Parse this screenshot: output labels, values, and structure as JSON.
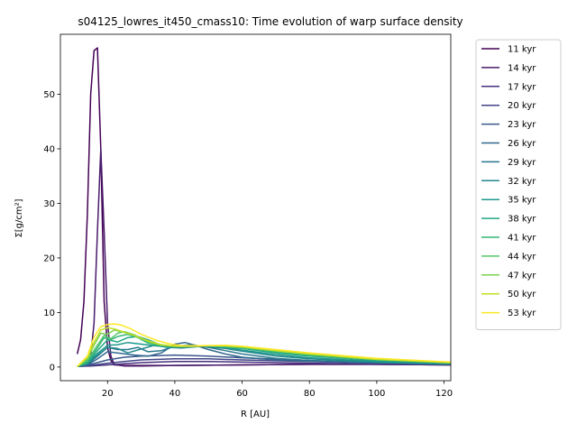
{
  "chart_data": {
    "type": "line",
    "title": "s04125_lowres_it450_cmass10: Time evolution of warp surface density",
    "xlabel": "R [AU]",
    "ylabel": "Σ[g/cm²]",
    "xlim": [
      6,
      122
    ],
    "ylim": [
      -2.5,
      61
    ],
    "x_ticks": [
      20,
      40,
      60,
      80,
      100,
      120
    ],
    "y_ticks": [
      0,
      10,
      20,
      30,
      40,
      50
    ],
    "grid": false,
    "legend_position": "outside-right",
    "series": [
      {
        "name": "11 kyr",
        "color": "#440154",
        "x": [
          11,
          12,
          13,
          14,
          15,
          16,
          17,
          18,
          19,
          20,
          21,
          22,
          25,
          30,
          40,
          60,
          80,
          100,
          122
        ],
        "values": [
          2.4,
          5,
          12,
          28,
          50,
          58,
          58.5,
          40,
          12,
          3.5,
          1.2,
          0.4,
          0.3,
          0.3,
          0.3,
          0.4,
          0.5,
          0.5,
          0.4
        ]
      },
      {
        "name": "14 kyr",
        "color": "#481a6c",
        "x": [
          11,
          13,
          15,
          16,
          17,
          18,
          19,
          20,
          21,
          22,
          25,
          30,
          40,
          60,
          80,
          100,
          122
        ],
        "values": [
          0.2,
          0.5,
          2,
          8,
          25,
          40,
          25,
          8,
          2,
          0.5,
          0.2,
          0.2,
          0.3,
          0.4,
          0.5,
          0.5,
          0.4
        ]
      },
      {
        "name": "17 kyr",
        "color": "#472f7d",
        "x": [
          11,
          15,
          20,
          25,
          30,
          40,
          50,
          60,
          80,
          100,
          122
        ],
        "values": [
          0.1,
          0.2,
          0.4,
          0.6,
          0.8,
          1.0,
          1.0,
          0.9,
          0.7,
          0.5,
          0.4
        ]
      },
      {
        "name": "20 kyr",
        "color": "#414487",
        "x": [
          11,
          15,
          20,
          25,
          30,
          40,
          50,
          60,
          80,
          100,
          122
        ],
        "values": [
          0.1,
          0.3,
          0.7,
          1.0,
          1.3,
          1.5,
          1.5,
          1.3,
          1.0,
          0.7,
          0.5
        ]
      },
      {
        "name": "23 kyr",
        "color": "#39568c",
        "x": [
          11,
          15,
          20,
          25,
          30,
          40,
          50,
          60,
          80,
          100,
          122
        ],
        "values": [
          0.1,
          0.5,
          1.3,
          1.8,
          2.0,
          2.2,
          2.0,
          1.7,
          1.2,
          0.8,
          0.5
        ]
      },
      {
        "name": "26 kyr",
        "color": "#31688e",
        "x": [
          11,
          14,
          17,
          20,
          24,
          28,
          32,
          36,
          40,
          43,
          46,
          50,
          55,
          60,
          70,
          80,
          100,
          122
        ],
        "values": [
          0.1,
          0.4,
          1.5,
          2.8,
          2.5,
          2.2,
          2.0,
          2.6,
          4.2,
          4.5,
          4.0,
          3.2,
          2.4,
          1.8,
          1.3,
          1.1,
          0.8,
          0.5
        ]
      },
      {
        "name": "29 kyr",
        "color": "#2a788e",
        "x": [
          11,
          14,
          17,
          20,
          23,
          26,
          29,
          32,
          36,
          40,
          45,
          50,
          55,
          60,
          70,
          80,
          100,
          122
        ],
        "values": [
          0.1,
          0.5,
          2,
          3.6,
          3.2,
          3.2,
          3.6,
          2.8,
          3.0,
          3.8,
          4.1,
          3.6,
          3.0,
          2.4,
          1.6,
          1.2,
          0.8,
          0.5
        ]
      },
      {
        "name": "32 kyr",
        "color": "#23888e",
        "x": [
          11,
          14,
          17,
          20,
          23,
          26,
          30,
          34,
          38,
          42,
          48,
          55,
          60,
          70,
          80,
          100,
          122
        ],
        "values": [
          0.1,
          0.6,
          2.2,
          3.6,
          3.4,
          2.6,
          3.3,
          4.0,
          3.6,
          3.5,
          3.8,
          3.4,
          2.9,
          2.0,
          1.5,
          0.9,
          0.6
        ]
      },
      {
        "name": "35 kyr",
        "color": "#1f988b",
        "x": [
          11,
          14,
          17,
          20,
          23,
          26,
          30,
          34,
          38,
          42,
          48,
          55,
          60,
          70,
          80,
          100,
          122
        ],
        "values": [
          0.1,
          0.7,
          2.5,
          4.0,
          4.1,
          4.5,
          4.2,
          3.9,
          3.7,
          3.8,
          3.9,
          3.6,
          3.1,
          2.3,
          1.7,
          1.0,
          0.6
        ]
      },
      {
        "name": "38 kyr",
        "color": "#22a884",
        "x": [
          11,
          14,
          17,
          20,
          23,
          26,
          29,
          32,
          36,
          40,
          45,
          50,
          60,
          70,
          80,
          100,
          122
        ],
        "values": [
          0.1,
          0.8,
          3,
          5.0,
          4.6,
          5.4,
          5.6,
          5.0,
          4.0,
          3.7,
          3.8,
          3.9,
          3.4,
          2.6,
          2.0,
          1.2,
          0.7
        ]
      },
      {
        "name": "41 kyr",
        "color": "#35b779",
        "x": [
          11,
          14,
          17,
          19,
          21,
          23,
          26,
          29,
          32,
          36,
          40,
          45,
          50,
          60,
          70,
          80,
          100,
          122
        ],
        "values": [
          0.1,
          1,
          3.5,
          5.4,
          5.0,
          5.6,
          6.0,
          5.4,
          4.4,
          3.9,
          3.8,
          3.9,
          3.9,
          3.5,
          2.8,
          2.2,
          1.3,
          0.8
        ]
      },
      {
        "name": "44 kyr",
        "color": "#54c568",
        "x": [
          11,
          14,
          17,
          19,
          21,
          23,
          25,
          28,
          32,
          36,
          40,
          45,
          50,
          60,
          70,
          80,
          100,
          122
        ],
        "values": [
          0.1,
          1.2,
          4,
          5.8,
          5.2,
          6.2,
          6.5,
          5.9,
          4.6,
          4.0,
          3.8,
          3.8,
          3.9,
          3.6,
          2.9,
          2.3,
          1.4,
          0.8
        ]
      },
      {
        "name": "47 kyr",
        "color": "#7ad151",
        "x": [
          11,
          14,
          16,
          18,
          20,
          22,
          24,
          27,
          30,
          34,
          38,
          42,
          48,
          55,
          60,
          70,
          80,
          100,
          122
        ],
        "values": [
          0.1,
          1.5,
          4,
          6.2,
          6.0,
          6.8,
          6.5,
          6.0,
          5.2,
          4.3,
          3.9,
          3.8,
          3.9,
          3.9,
          3.7,
          3.0,
          2.4,
          1.4,
          0.8
        ]
      },
      {
        "name": "50 kyr",
        "color": "#c2df23",
        "x": [
          11,
          14,
          16,
          18,
          20,
          22,
          25,
          28,
          32,
          36,
          40,
          45,
          50,
          55,
          60,
          70,
          80,
          100,
          122
        ],
        "values": [
          0.1,
          1.8,
          4.5,
          6.8,
          7.2,
          7.0,
          6.4,
          5.8,
          4.8,
          4.1,
          3.8,
          3.8,
          3.9,
          3.9,
          3.7,
          3.0,
          2.4,
          1.4,
          0.8
        ]
      },
      {
        "name": "53 kyr",
        "color": "#fde725",
        "x": [
          11,
          14,
          16,
          18,
          20,
          22,
          24,
          27,
          30,
          34,
          38,
          42,
          48,
          55,
          60,
          70,
          80,
          100,
          122
        ],
        "values": [
          0.1,
          2,
          5.5,
          7.4,
          7.8,
          7.9,
          7.7,
          7.0,
          6.0,
          5.0,
          4.3,
          3.9,
          3.9,
          4.0,
          3.8,
          3.2,
          2.6,
          1.6,
          0.9
        ]
      }
    ]
  }
}
